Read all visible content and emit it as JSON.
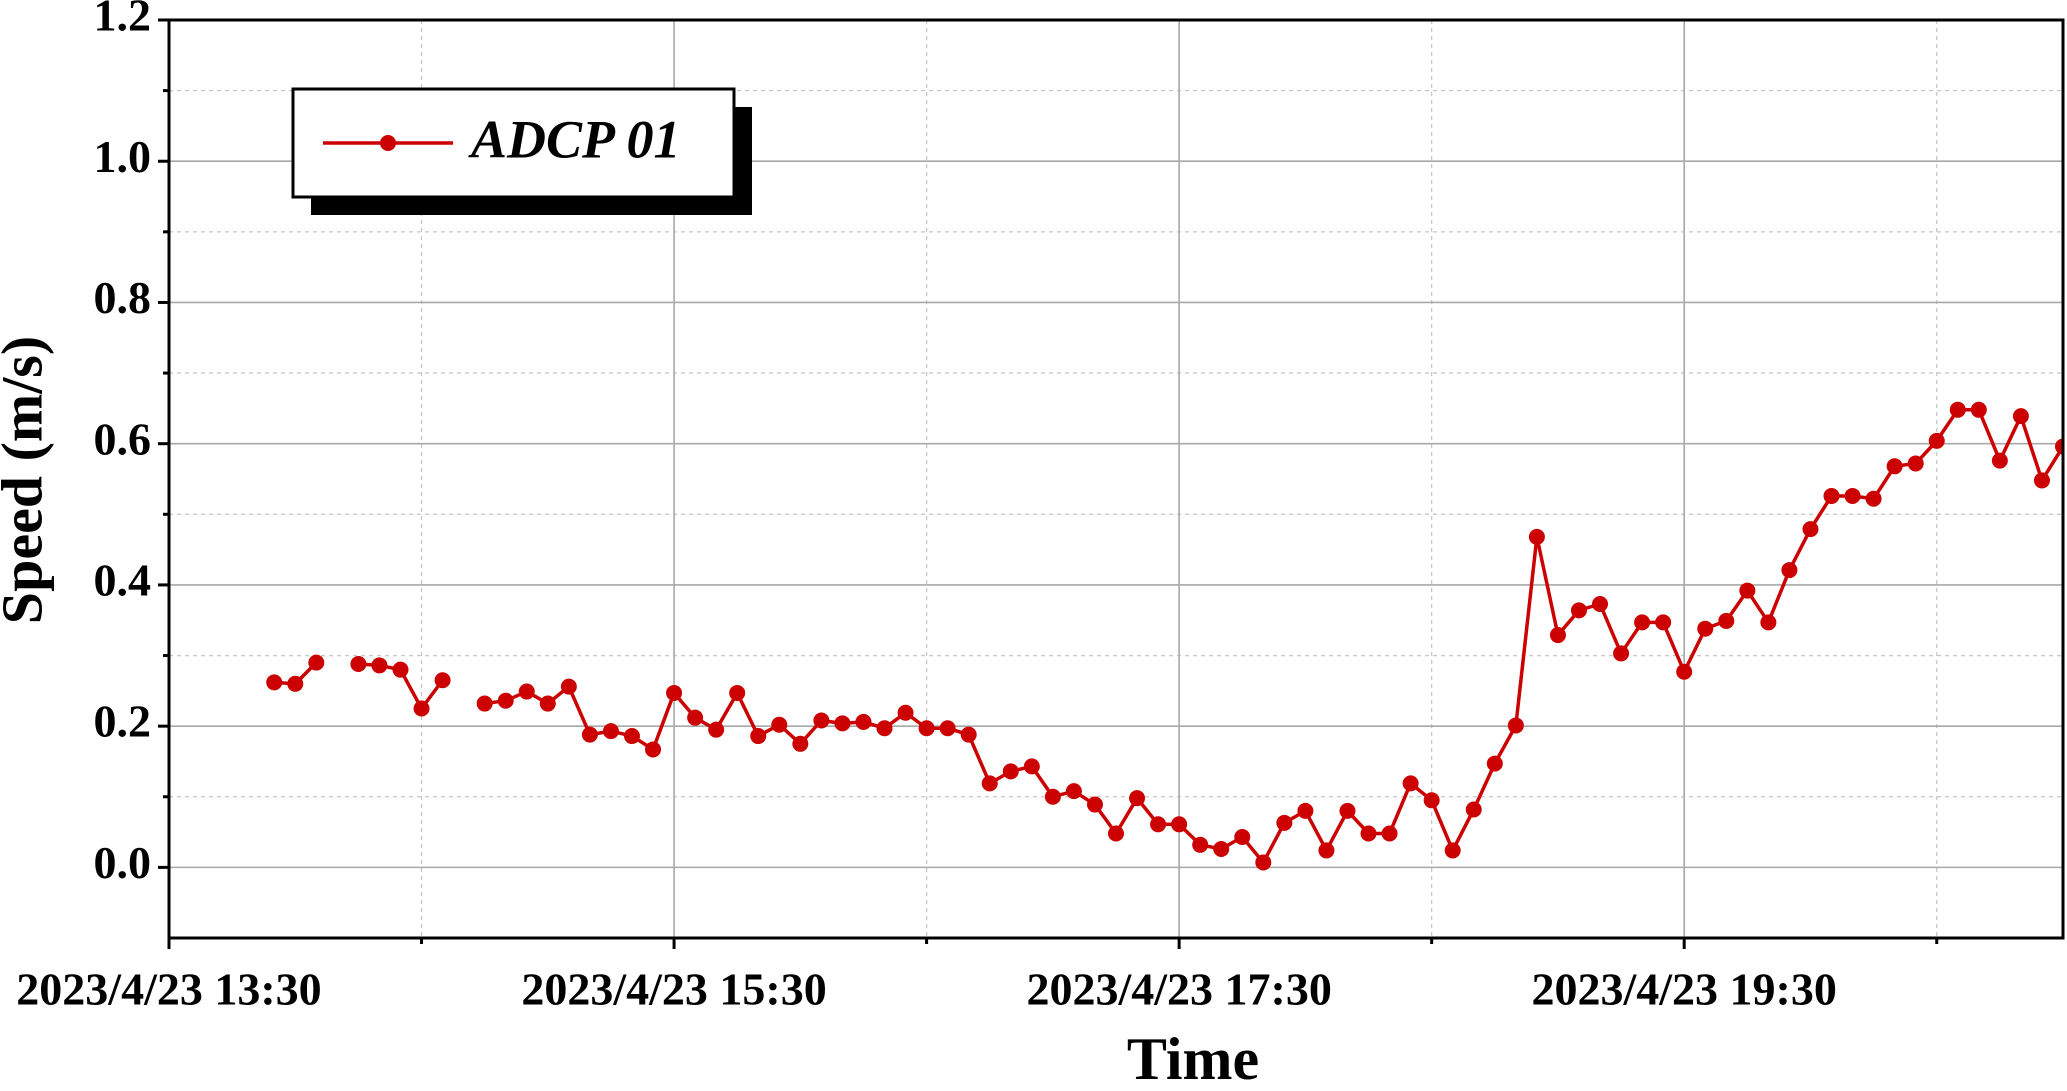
{
  "chart_data": {
    "type": "line",
    "x_label": "Time",
    "y_label": "Speed (m/s)",
    "x": [
      "2023/4/23 13:55",
      "2023/4/23 14:00",
      "2023/4/23 14:05",
      "2023/4/23 14:10",
      "2023/4/23 14:15",
      "2023/4/23 14:20",
      "2023/4/23 14:25",
      "2023/4/23 14:30",
      "2023/4/23 14:35",
      "2023/4/23 14:40",
      "2023/4/23 14:45",
      "2023/4/23 14:50",
      "2023/4/23 14:55",
      "2023/4/23 15:00",
      "2023/4/23 15:05",
      "2023/4/23 15:10",
      "2023/4/23 15:15",
      "2023/4/23 15:20",
      "2023/4/23 15:25",
      "2023/4/23 15:30",
      "2023/4/23 15:35",
      "2023/4/23 15:40",
      "2023/4/23 15:45",
      "2023/4/23 15:50",
      "2023/4/23 15:55",
      "2023/4/23 16:00",
      "2023/4/23 16:05",
      "2023/4/23 16:10",
      "2023/4/23 16:15",
      "2023/4/23 16:20",
      "2023/4/23 16:25",
      "2023/4/23 16:30",
      "2023/4/23 16:35",
      "2023/4/23 16:40",
      "2023/4/23 16:45",
      "2023/4/23 16:50",
      "2023/4/23 16:55",
      "2023/4/23 17:00",
      "2023/4/23 17:05",
      "2023/4/23 17:10",
      "2023/4/23 17:15",
      "2023/4/23 17:20",
      "2023/4/23 17:25",
      "2023/4/23 17:30",
      "2023/4/23 17:35",
      "2023/4/23 17:40",
      "2023/4/23 17:45",
      "2023/4/23 17:50",
      "2023/4/23 17:55",
      "2023/4/23 18:00",
      "2023/4/23 18:05",
      "2023/4/23 18:10",
      "2023/4/23 18:15",
      "2023/4/23 18:20",
      "2023/4/23 18:25",
      "2023/4/23 18:30",
      "2023/4/23 18:35",
      "2023/4/23 18:40",
      "2023/4/23 18:45",
      "2023/4/23 18:50",
      "2023/4/23 18:55",
      "2023/4/23 19:00",
      "2023/4/23 19:05",
      "2023/4/23 19:10",
      "2023/4/23 19:15",
      "2023/4/23 19:20",
      "2023/4/23 19:25",
      "2023/4/23 19:30",
      "2023/4/23 19:35",
      "2023/4/23 19:40",
      "2023/4/23 19:45",
      "2023/4/23 19:50",
      "2023/4/23 19:55",
      "2023/4/23 20:00",
      "2023/4/23 20:05",
      "2023/4/23 20:10",
      "2023/4/23 20:15",
      "2023/4/23 20:20",
      "2023/4/23 20:25",
      "2023/4/23 20:30",
      "2023/4/23 20:35",
      "2023/4/23 20:40",
      "2023/4/23 20:45",
      "2023/4/23 20:50",
      "2023/4/23 20:55",
      "2023/4/23 21:00"
    ],
    "series": [
      {
        "name": "ADCP 01",
        "color": "#cc0000",
        "values": [
          0.262,
          0.26,
          0.29,
          null,
          0.288,
          0.286,
          0.28,
          0.225,
          0.265,
          null,
          0.232,
          0.236,
          0.249,
          0.232,
          0.256,
          0.188,
          0.193,
          0.186,
          0.167,
          0.247,
          0.212,
          0.195,
          0.247,
          0.186,
          0.202,
          0.175,
          0.208,
          0.204,
          0.206,
          0.197,
          0.219,
          0.197,
          0.197,
          0.188,
          0.119,
          0.136,
          0.143,
          0.1,
          0.108,
          0.089,
          0.048,
          0.098,
          0.061,
          0.061,
          0.032,
          0.026,
          0.043,
          0.007,
          0.063,
          0.08,
          0.024,
          0.08,
          0.048,
          0.048,
          0.119,
          0.095,
          0.024,
          0.082,
          0.147,
          0.201,
          0.468,
          0.329,
          0.364,
          0.373,
          0.303,
          0.347,
          0.347,
          0.277,
          0.338,
          0.349,
          0.392,
          0.347,
          0.421,
          0.479,
          0.526,
          0.526,
          0.522,
          0.568,
          0.572,
          0.604,
          0.648,
          0.648,
          0.576,
          0.639,
          0.548,
          0.596
        ]
      }
    ],
    "xlim": [
      "2023/4/23 13:30",
      "2023/4/23 21:00"
    ],
    "xticks": [
      "2023/4/23 13:30",
      "2023/4/23 15:30",
      "2023/4/23 17:30",
      "2023/4/23 19:30"
    ],
    "xminorticks": [
      "2023/4/23 14:30",
      "2023/4/23 16:30",
      "2023/4/23 18:30",
      "2023/4/23 20:30"
    ],
    "ylim": [
      -0.1,
      1.2
    ],
    "yticks": [
      {
        "value": 0,
        "label": "0.0"
      },
      0.2,
      0.4,
      0.6,
      0.8,
      {
        "value": 1,
        "label": "1.0"
      },
      1.2
    ],
    "yminorticks": [
      0.1,
      0.3,
      0.5,
      0.7,
      0.9,
      1.1
    ],
    "grid": true,
    "legend": "upper left"
  }
}
